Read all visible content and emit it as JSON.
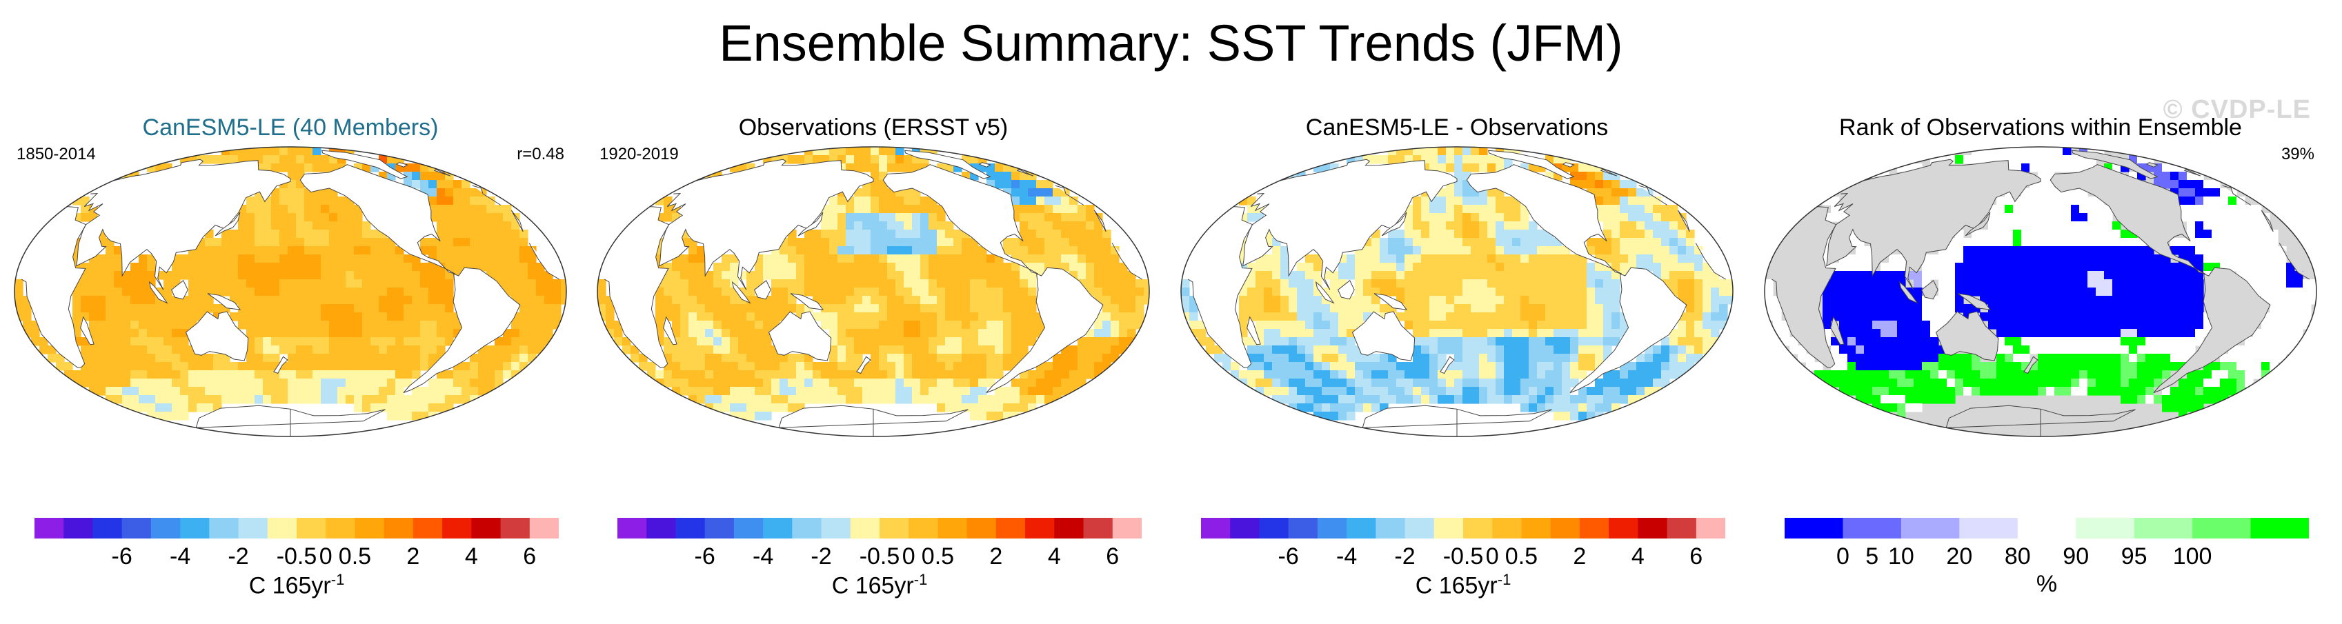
{
  "title": "Ensemble Summary: SST Trends (JFM)",
  "watermark": "© CVDP-LE",
  "colors": {
    "title_teal": "#1f6e8c",
    "land": "#ffffff",
    "land_gray": "#d7d7d7",
    "coast": "#444444"
  },
  "panels": [
    {
      "title": "CanESM5-LE (40 Members)",
      "left_label": "1850-2014",
      "right_label": "r=0.48",
      "colorbar": "trend"
    },
    {
      "title": "Observations (ERSST v5)",
      "left_label": "1920-2019",
      "right_label": "",
      "colorbar": "trend"
    },
    {
      "title": "CanESM5-LE - Observations",
      "left_label": "",
      "right_label": "",
      "colorbar": "trend"
    },
    {
      "title": "Rank of Observations within Ensemble",
      "left_label": "",
      "right_label": "39%",
      "colorbar": "rank"
    }
  ],
  "colorbars": {
    "trend": {
      "colors": [
        "#8c1ee6",
        "#4b14dc",
        "#2335e6",
        "#3c5ee6",
        "#3f8ff0",
        "#3cb0f0",
        "#8fd0f5",
        "#b8e3f7",
        "#fff7a6",
        "#ffd34a",
        "#ffbd26",
        "#ffa60a",
        "#ff8a00",
        "#ff5a00",
        "#f01e00",
        "#c80000",
        "#d23c3c",
        "#ffb4b4"
      ],
      "ticks": [
        "-6",
        "-4",
        "-2",
        "-0.5",
        "0",
        "0.5",
        "2",
        "4",
        "6"
      ],
      "tick_positions": [
        3,
        5,
        7,
        9,
        10,
        11,
        13,
        15,
        17
      ],
      "label": "C 165yr",
      "label_sup": "-1"
    },
    "rank": {
      "colors": [
        "#0000ff",
        "#6a6aff",
        "#aaaaff",
        "#ddddff",
        "#ffffff",
        "#ddffdd",
        "#aaffaa",
        "#6aff6a",
        "#00ff00"
      ],
      "ticks": [
        "0",
        "5",
        "10",
        "20",
        "80",
        "90",
        "95",
        "100"
      ],
      "tick_positions": [
        1,
        1.5,
        2,
        3,
        4,
        5,
        6,
        7
      ],
      "label": "%",
      "label_sup": ""
    }
  },
  "chart_data": [
    {
      "type": "heatmap",
      "title": "CanESM5-LE (40 Members)",
      "period": "1850-2014",
      "pattern_correlation": "r=0.48",
      "variable": "SST trend (JFM)",
      "units": "C 165yr-1",
      "levels": [
        -6,
        -4,
        -2,
        -0.5,
        0,
        0.5,
        2,
        4,
        6
      ],
      "regions": [
        {
          "region": "Tropical Pacific",
          "approx_trend": 1.5
        },
        {
          "region": "Indian Ocean",
          "approx_trend": 1.5
        },
        {
          "region": "North Atlantic subpolar",
          "approx_trend": 0.5
        },
        {
          "region": "Southern Ocean",
          "approx_trend": 0.5
        },
        {
          "region": "Subtropical gyres",
          "approx_trend": 1.0
        }
      ]
    },
    {
      "type": "heatmap",
      "title": "Observations (ERSST v5)",
      "period": "1920-2019",
      "variable": "SST trend (JFM)",
      "units": "C 165yr-1",
      "levels": [
        -6,
        -4,
        -2,
        -0.5,
        0,
        0.5,
        2,
        4,
        6
      ],
      "regions": [
        {
          "region": "Tropical Pacific",
          "approx_trend": 1.0
        },
        {
          "region": "North Pacific central",
          "approx_trend": -0.3
        },
        {
          "region": "North Atlantic subpolar",
          "approx_trend": -1.0
        },
        {
          "region": "South Atlantic",
          "approx_trend": 1.5
        },
        {
          "region": "Indian Ocean",
          "approx_trend": 1.5
        }
      ]
    },
    {
      "type": "heatmap",
      "title": "CanESM5-LE - Observations",
      "variable": "SST trend difference (JFM)",
      "units": "C 165yr-1",
      "levels": [
        -6,
        -4,
        -2,
        -0.5,
        0,
        0.5,
        2,
        4,
        6
      ],
      "regions": [
        {
          "region": "Tropical Pacific",
          "approx_trend": 0.6
        },
        {
          "region": "North Atlantic subpolar",
          "approx_trend": 1.5
        },
        {
          "region": "Southern Ocean",
          "approx_trend": -1.0
        },
        {
          "region": "South Atlantic",
          "approx_trend": -1.0
        }
      ]
    },
    {
      "type": "heatmap",
      "title": "Rank of Observations within Ensemble",
      "variable": "Rank",
      "units": "%",
      "summary": "39%",
      "levels": [
        0,
        5,
        10,
        20,
        80,
        90,
        95,
        100
      ],
      "regions": [
        {
          "region": "Tropical Pacific",
          "rank_class": "0-5"
        },
        {
          "region": "Indian Ocean",
          "rank_class": "0-5"
        },
        {
          "region": "Southern Ocean",
          "rank_class": "95-100"
        },
        {
          "region": "North Atlantic",
          "rank_class": "0-5"
        }
      ]
    }
  ]
}
